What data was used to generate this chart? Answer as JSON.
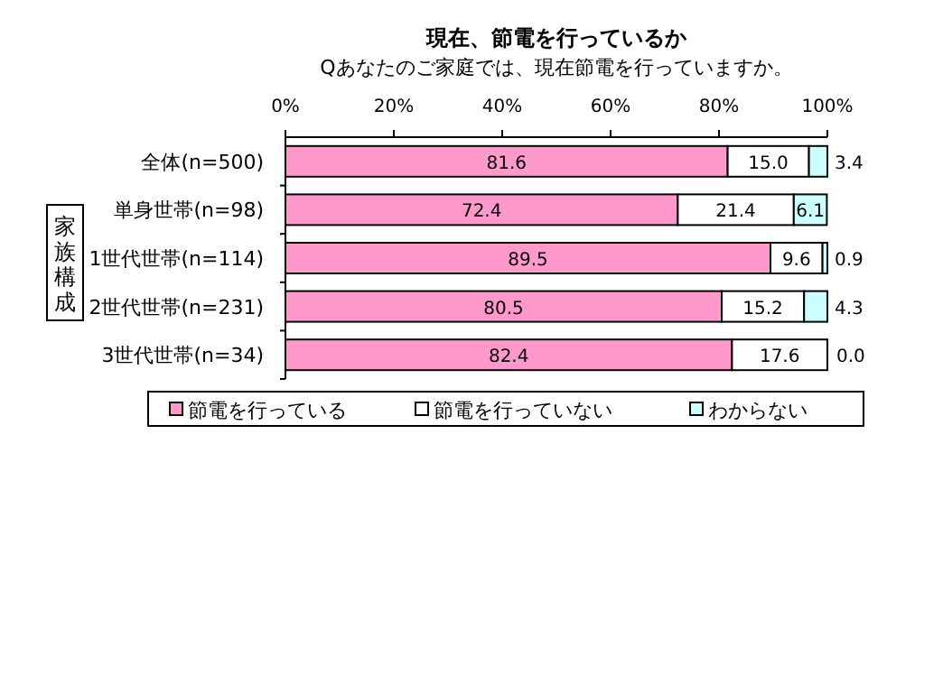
{
  "chart_data": {
    "type": "bar",
    "orientation": "horizontal",
    "stacked": true,
    "title": "現在、節電を行っているか",
    "subtitle": "Qあなたのご家庭では、現在節電を行っていますか。",
    "categories": [
      "全体(n=500)",
      "単身世帯(n=98)",
      "1世代世帯(n=114)",
      "2世代世帯(n=231)",
      "3世代世帯(n=34)"
    ],
    "series": [
      {
        "name": "節電を行っている",
        "color": "#ff99cc",
        "values": [
          81.6,
          72.4,
          89.5,
          80.5,
          82.4
        ],
        "value_labels": [
          "81.6",
          "72.4",
          "89.5",
          "80.5",
          "82.4"
        ]
      },
      {
        "name": "節電を行っていない",
        "color": "#ffffff",
        "values": [
          15.0,
          21.4,
          9.6,
          15.2,
          17.6
        ],
        "value_labels": [
          "15.0",
          "21.4",
          "9.6",
          "15.2",
          "17.6"
        ]
      },
      {
        "name": "わからない",
        "color": "#ccffff",
        "values": [
          3.4,
          6.1,
          0.9,
          4.3,
          0.0
        ],
        "value_labels": [
          "3.4",
          "6.1",
          "0.9",
          "4.3",
          "0.0"
        ]
      }
    ],
    "xlim": [
      0,
      100
    ],
    "xticks": [
      {
        "value": 0,
        "label": "0%"
      },
      {
        "value": 20,
        "label": "20%"
      },
      {
        "value": 40,
        "label": "40%"
      },
      {
        "value": 60,
        "label": "60%"
      },
      {
        "value": 80,
        "label": "80%"
      },
      {
        "value": 100,
        "label": "100%"
      }
    ],
    "annotations": [
      "家族構成"
    ],
    "legend": "bottom",
    "grid": false
  }
}
